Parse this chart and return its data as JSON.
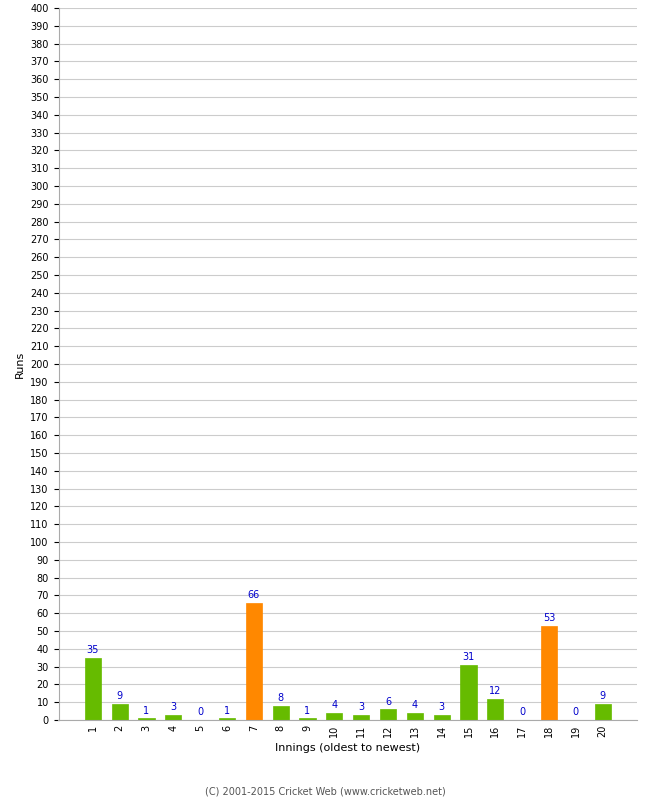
{
  "innings": [
    1,
    2,
    3,
    4,
    5,
    6,
    7,
    8,
    9,
    10,
    11,
    12,
    13,
    14,
    15,
    16,
    17,
    18,
    19,
    20
  ],
  "values": [
    35,
    9,
    1,
    3,
    0,
    1,
    66,
    8,
    1,
    4,
    3,
    6,
    4,
    3,
    31,
    12,
    0,
    53,
    0,
    9
  ],
  "colors": [
    "#66bb00",
    "#66bb00",
    "#66bb00",
    "#66bb00",
    "#66bb00",
    "#66bb00",
    "#ff8800",
    "#66bb00",
    "#66bb00",
    "#66bb00",
    "#66bb00",
    "#66bb00",
    "#66bb00",
    "#66bb00",
    "#66bb00",
    "#66bb00",
    "#66bb00",
    "#ff8800",
    "#66bb00",
    "#66bb00"
  ],
  "xlabel": "Innings (oldest to newest)",
  "ylabel": "Runs",
  "ylim": [
    0,
    400
  ],
  "yticks": [
    0,
    10,
    20,
    30,
    40,
    50,
    60,
    70,
    80,
    90,
    100,
    110,
    120,
    130,
    140,
    150,
    160,
    170,
    180,
    190,
    200,
    210,
    220,
    230,
    240,
    250,
    260,
    270,
    280,
    290,
    300,
    310,
    320,
    330,
    340,
    350,
    360,
    370,
    380,
    390,
    400
  ],
  "footer": "(C) 2001-2015 Cricket Web (www.cricketweb.net)",
  "background_color": "#ffffff",
  "grid_color": "#cccccc",
  "label_color": "#0000cc",
  "ylabel_fontsize": 8,
  "xlabel_fontsize": 8,
  "tick_fontsize": 7,
  "bar_label_fontsize": 7
}
